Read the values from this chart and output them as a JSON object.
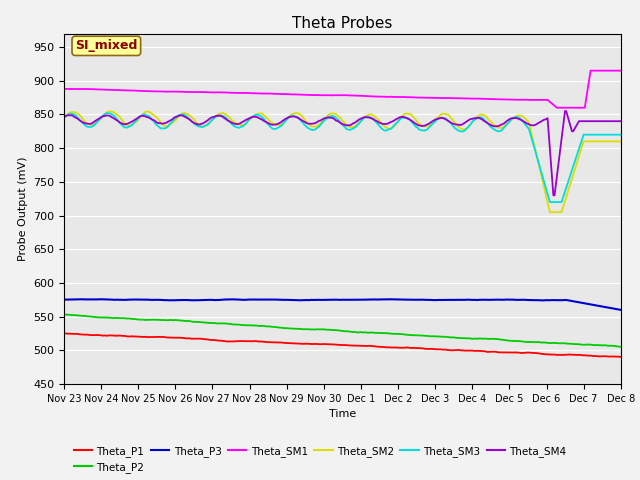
{
  "title": "Theta Probes",
  "xlabel": "Time",
  "ylabel": "Probe Output (mV)",
  "ylim": [
    450,
    970
  ],
  "yticks": [
    450,
    500,
    550,
    600,
    650,
    700,
    750,
    800,
    850,
    900,
    950
  ],
  "annotation": "SI_mixed",
  "annotation_color": "#8B0000",
  "annotation_bg": "#FFFF99",
  "annotation_border": "#8B6914",
  "plot_bg": "#E8E8E8",
  "fig_bg": "#F2F2F2",
  "series": {
    "Theta_P1": {
      "color": "#FF0000",
      "linewidth": 1.3
    },
    "Theta_P2": {
      "color": "#00CC00",
      "linewidth": 1.3
    },
    "Theta_P3": {
      "color": "#0000CC",
      "linewidth": 1.5
    },
    "Theta_SM1": {
      "color": "#FF00FF",
      "linewidth": 1.3
    },
    "Theta_SM2": {
      "color": "#DDDD00",
      "linewidth": 1.3
    },
    "Theta_SM3": {
      "color": "#00DDDD",
      "linewidth": 1.3
    },
    "Theta_SM4": {
      "color": "#9900CC",
      "linewidth": 1.3
    }
  },
  "xtick_labels": [
    "Nov 23",
    "Nov 24",
    "Nov 25",
    "Nov 26",
    "Nov 27",
    "Nov 28",
    "Nov 29",
    "Nov 30",
    "Dec 1",
    "Dec 2",
    "Dec 3",
    "Dec 4",
    "Dec 5",
    "Dec 6",
    "Dec 7",
    "Dec 8"
  ],
  "n_points": 480
}
